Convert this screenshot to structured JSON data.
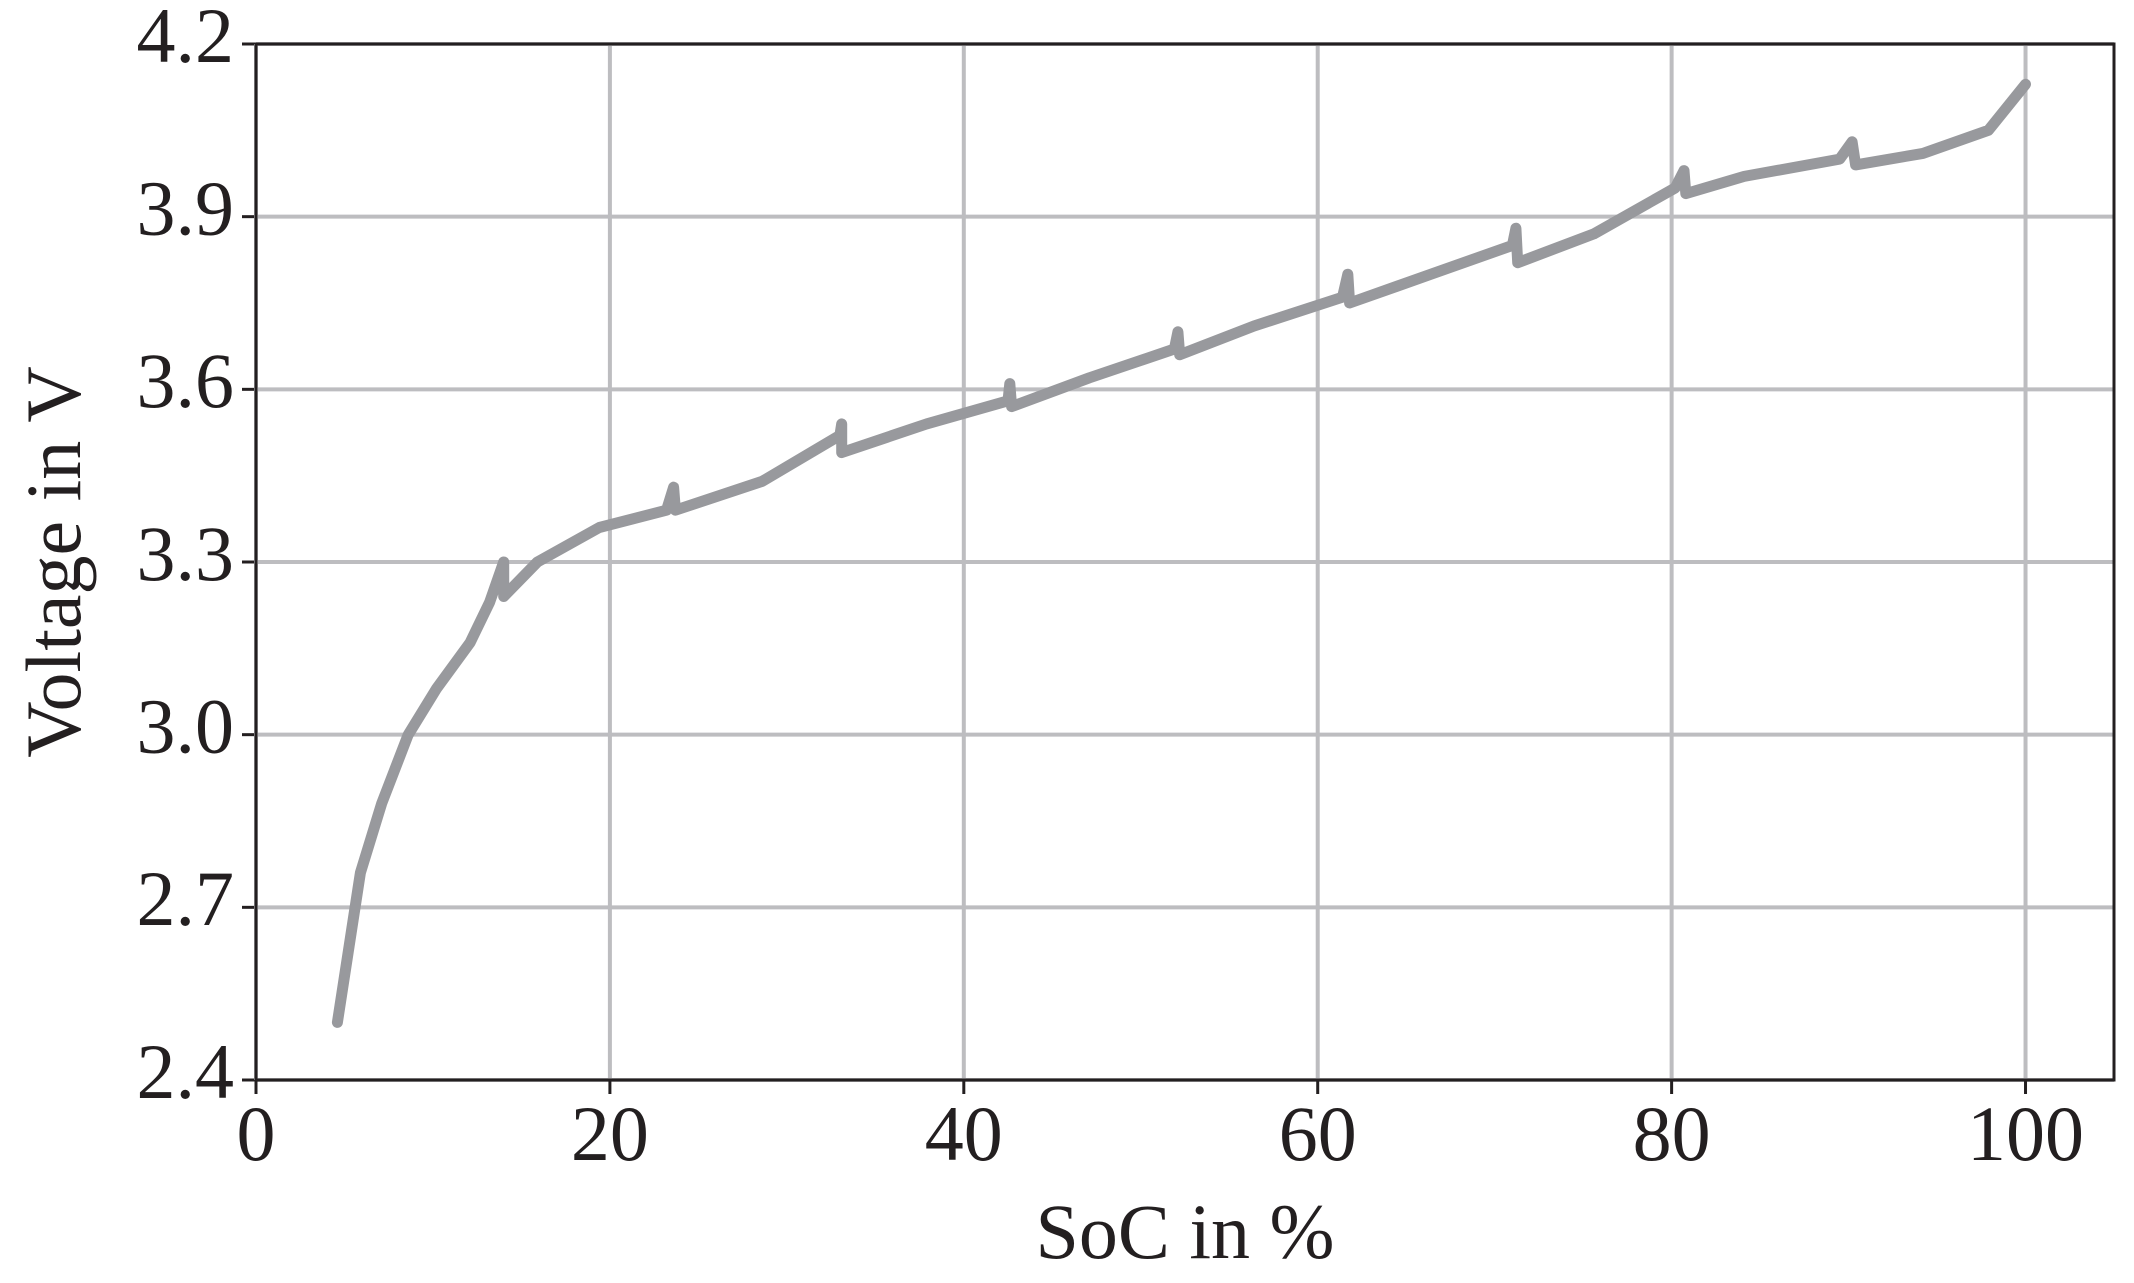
{
  "chart_data": {
    "type": "line",
    "x_label": "SoC in %",
    "y_label": "Voltage in V",
    "xlim": [
      0,
      105
    ],
    "xticks": [
      0,
      20,
      40,
      60,
      80,
      100
    ],
    "ylim": [
      2.4,
      4.2
    ],
    "yticks": [
      2.4,
      2.7,
      {
        "value": 3,
        "label": "3.0"
      },
      3.3,
      3.6,
      3.9,
      4.2
    ],
    "grid": true,
    "series": [
      {
        "color": "#98999d",
        "x": [
          4.6,
          5.2,
          5.9,
          7.1,
          8.6,
          10.2,
          12.1,
          13.2,
          14.0,
          14.0,
          15.9,
          19.4,
          23.2,
          23.6,
          23.7,
          28.6,
          33.0,
          33.1,
          33.1,
          37.9,
          42.5,
          42.6,
          42.7,
          47.1,
          51.9,
          52.1,
          52.2,
          56.4,
          61.4,
          61.7,
          61.8,
          66.4,
          71.0,
          71.2,
          71.3,
          75.6,
          80.2,
          80.7,
          80.8,
          84.1,
          89.5,
          90.2,
          90.4,
          94.2,
          97.9,
          100
        ],
        "values": [
          2.5,
          2.62,
          2.76,
          2.88,
          3.0,
          3.08,
          3.16,
          3.23,
          3.3,
          3.24,
          3.3,
          3.36,
          3.39,
          3.43,
          3.39,
          3.44,
          3.52,
          3.54,
          3.49,
          3.54,
          3.58,
          3.61,
          3.57,
          3.62,
          3.67,
          3.7,
          3.66,
          3.71,
          3.76,
          3.8,
          3.75,
          3.8,
          3.85,
          3.88,
          3.82,
          3.87,
          3.95,
          3.98,
          3.94,
          3.97,
          4.0,
          4.03,
          3.99,
          4.01,
          4.05,
          4.13
        ]
      }
    ]
  }
}
